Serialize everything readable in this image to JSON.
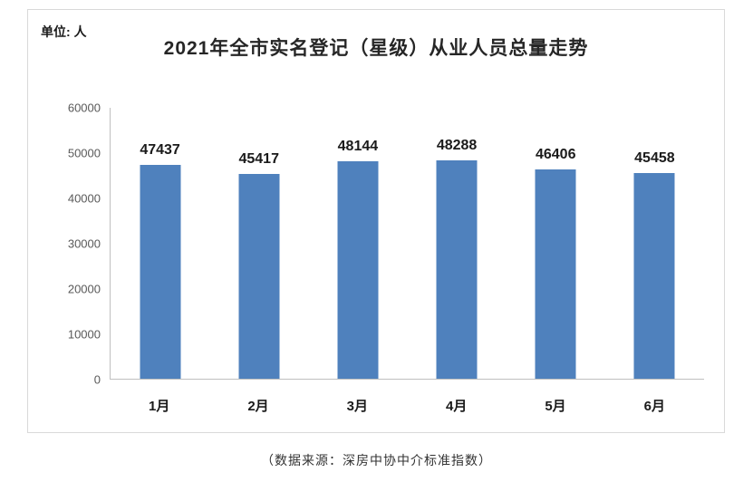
{
  "chart_data": {
    "type": "bar",
    "title": "2021年全市实名登记（星级）从业人员总量走势",
    "unit_label": "单位: 人",
    "categories": [
      "1月",
      "2月",
      "3月",
      "4月",
      "5月",
      "6月"
    ],
    "values": [
      47437,
      45417,
      48144,
      48288,
      46406,
      45458
    ],
    "ylim": [
      0,
      60000
    ],
    "yticks": [
      0,
      10000,
      20000,
      30000,
      40000,
      50000,
      60000
    ],
    "bar_color": "#4f81bd",
    "grid": false,
    "legend_position": "none",
    "xlabel": "",
    "ylabel": "",
    "source": "（数据来源：深房中协中介标准指数）"
  }
}
